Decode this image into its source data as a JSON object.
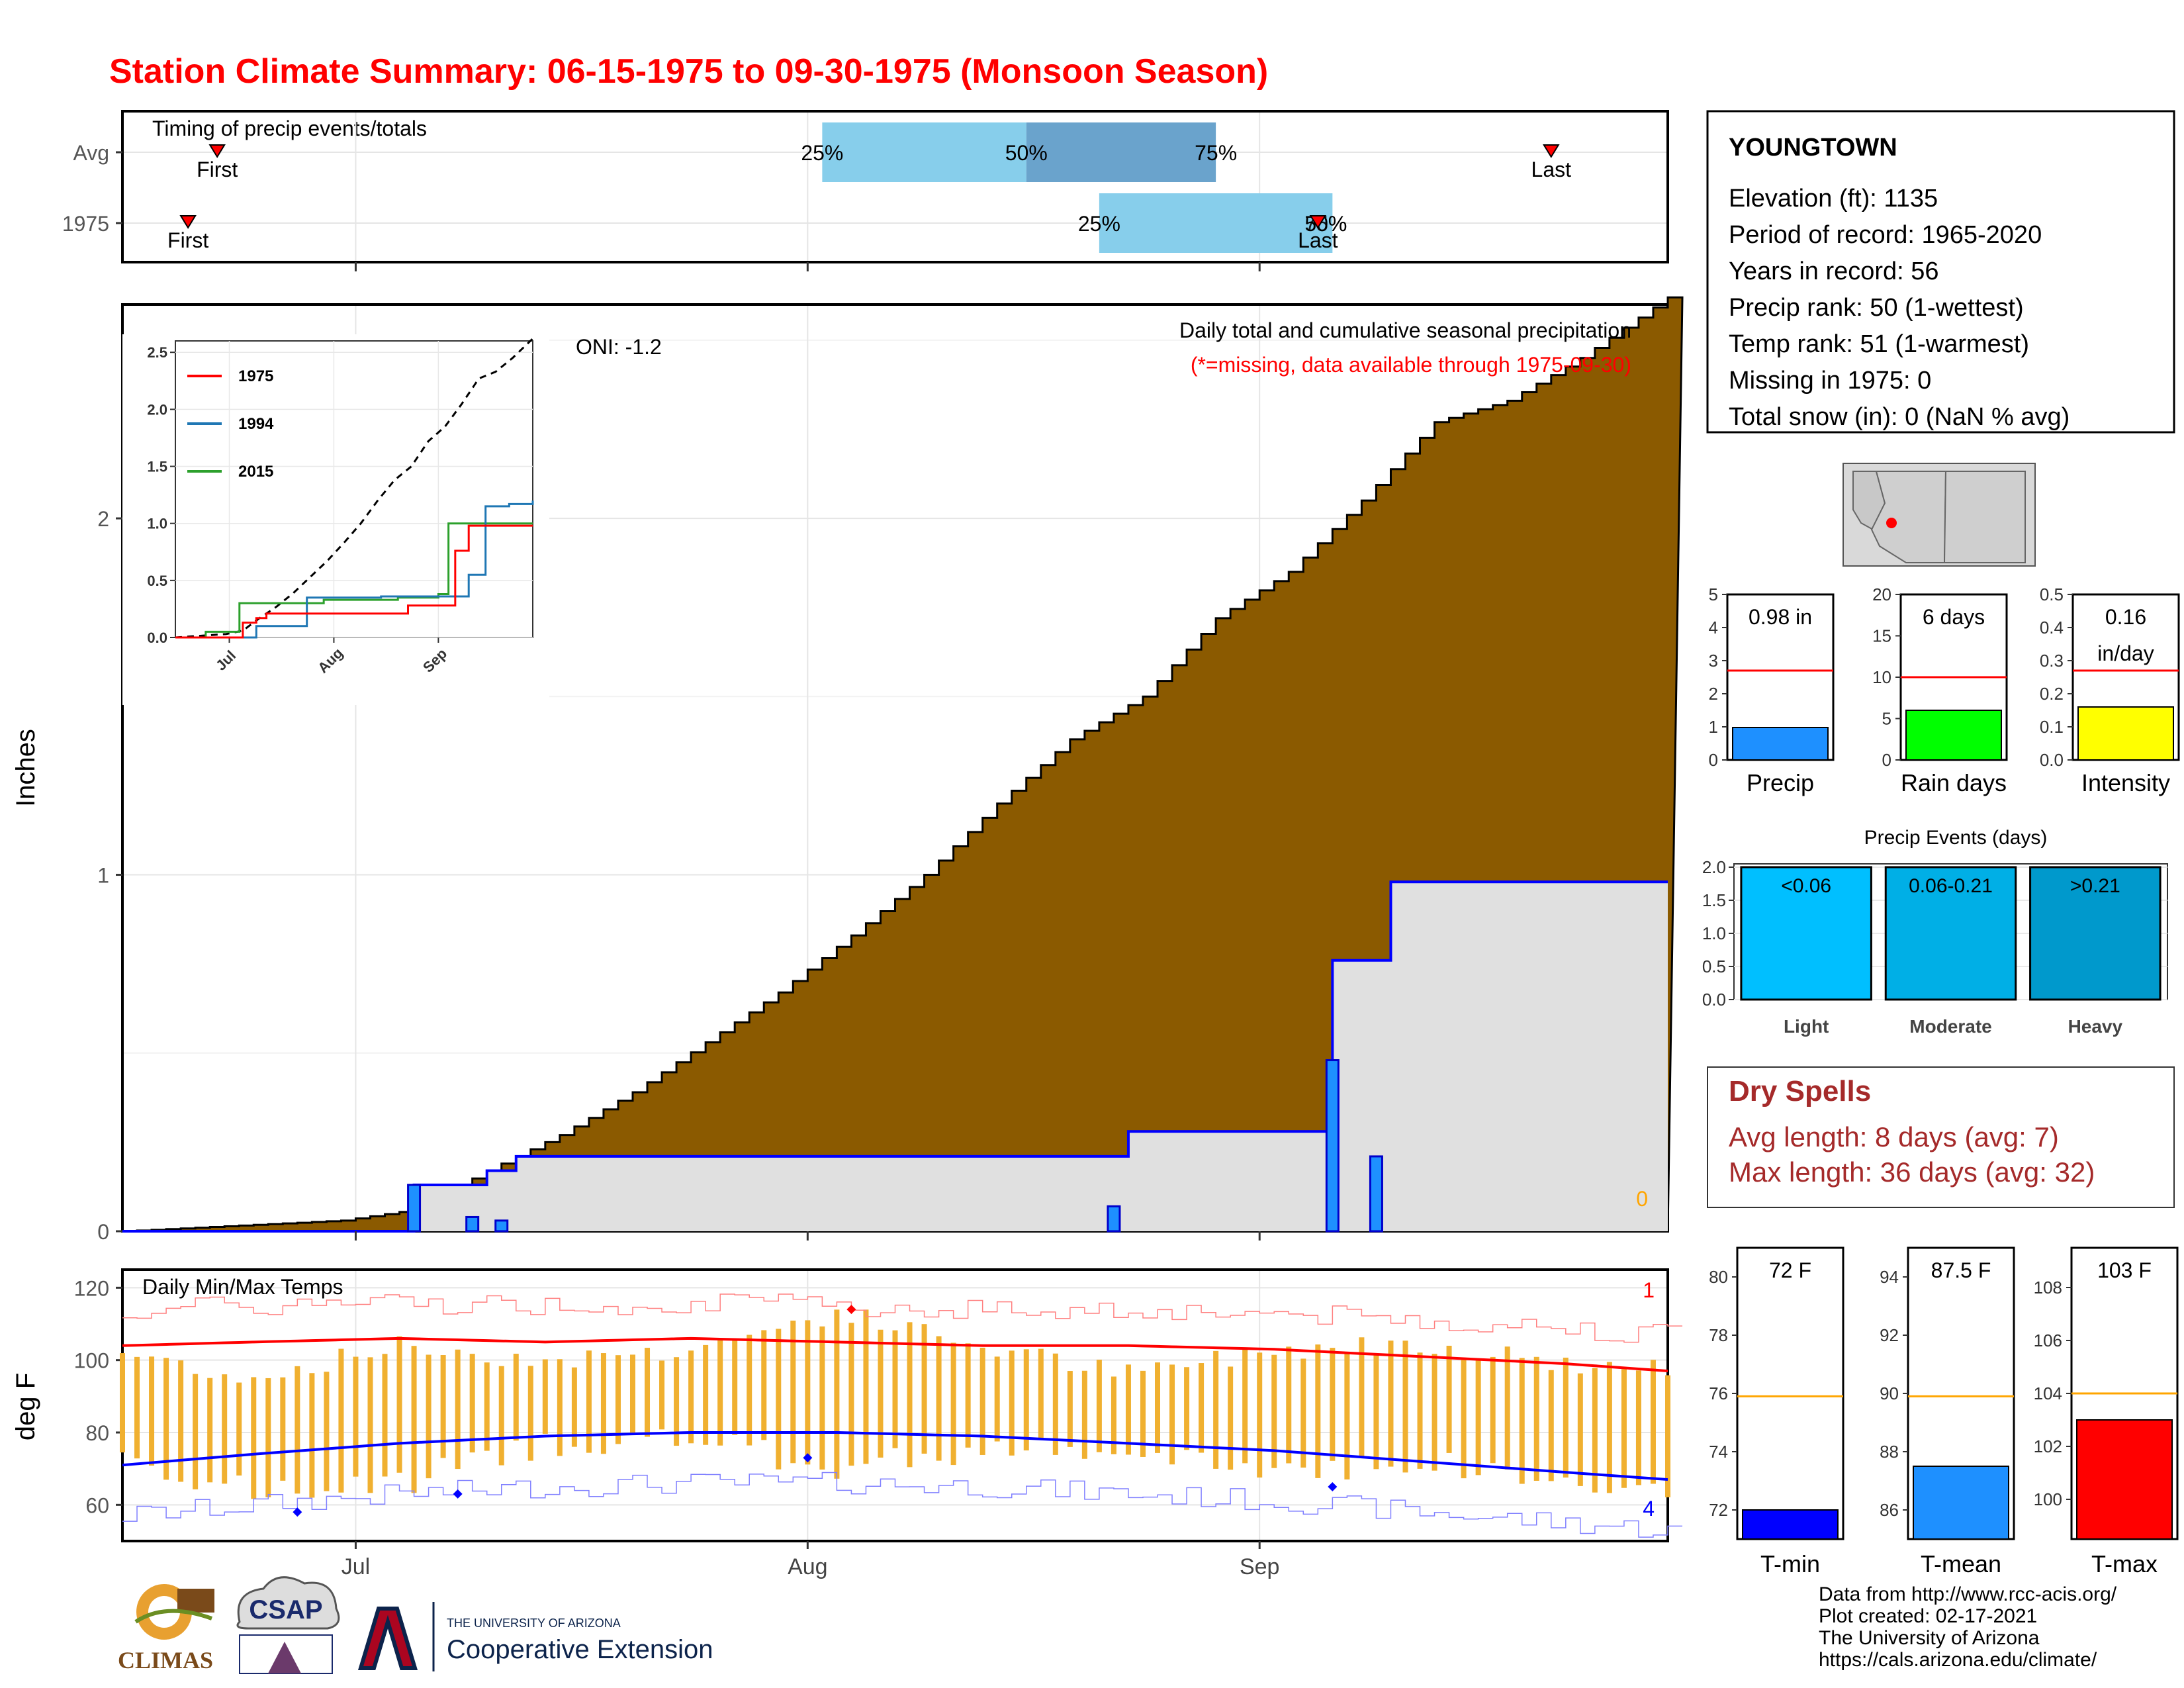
{
  "title": "Station Climate Summary: 06-15-1975 to 09-30-1975 (Monsoon Season)",
  "colors": {
    "title": "#ff0000",
    "cumulative_fill": "#8b5a00",
    "daily_bar": "#1e90ff",
    "obs_line": "#0000ff",
    "obs_fill": "#e0e0e0",
    "temp_bar": "#f0b030",
    "tmax_line": "#ff0000",
    "tmin_line": "#0000ff",
    "timing_light": "#87ceeb",
    "timing_dark": "#6aa3cc",
    "dry_spell": "#a52a2a"
  },
  "month_ticks": [
    "Jul",
    "Aug",
    "Sep"
  ],
  "timing": {
    "title": "Timing of precip events/totals",
    "rows": [
      {
        "label": "Avg",
        "first": "First",
        "last": "Last",
        "p25": "25%",
        "p50": "50%",
        "p75": "75%",
        "first_doy": 7.5,
        "last_doy": 99,
        "q25": 49,
        "q50": 63,
        "q75": 76
      },
      {
        "label": "1975",
        "first": "First",
        "last": "Last",
        "p25": "25%",
        "p50": "50%",
        "p75": "75%",
        "first_doy": 5.5,
        "last_doy": 83,
        "q25": 68,
        "q50": 84,
        "q75": 84
      }
    ]
  },
  "precip_panel": {
    "ylabel": "Inches",
    "yticks": [
      "0",
      "1",
      "2"
    ],
    "oni": "ONI: -1.2",
    "header": "Daily total and cumulative seasonal precipitation",
    "missing_note": "(*=missing, data available through 1975-09-30)",
    "missing_count": "0"
  },
  "inset": {
    "yticks": [
      "0.0",
      "0.5",
      "1.0",
      "1.5",
      "2.0",
      "2.5"
    ],
    "xticks": [
      "Jul",
      "Aug",
      "Sep"
    ],
    "legend": [
      {
        "name": "1975",
        "color": "#ff0000"
      },
      {
        "name": "1994",
        "color": "#1f77b4"
      },
      {
        "name": "2015",
        "color": "#2ca02c"
      }
    ]
  },
  "temp_panel": {
    "title": "Daily Min/Max Temps",
    "ylabel": "deg F",
    "yticks": [
      "60",
      "80",
      "100",
      "120"
    ],
    "count_high": "1",
    "count_low": "4"
  },
  "station": {
    "name": "YOUNGTOWN",
    "lines": [
      "Elevation (ft): 1135",
      "Period of record: 1965-2020",
      "Years in record: 56",
      "Precip rank: 50 (1-wettest)",
      "Temp rank: 51 (1-warmest)",
      "Missing in 1975: 0",
      "Total snow (in): 0 (NaN % avg)"
    ]
  },
  "mini_bars": [
    {
      "label": "Precip",
      "value_text": "0.98 in",
      "value": 0.98,
      "avg": 2.7,
      "max": 5,
      "ticks": [
        "0",
        "1",
        "2",
        "3",
        "4",
        "5"
      ],
      "color": "#1e90ff"
    },
    {
      "label": "Rain days",
      "value_text": "6 days",
      "value": 6,
      "avg": 10,
      "max": 20,
      "ticks": [
        "0",
        "5",
        "10",
        "15",
        "20"
      ],
      "color": "#00ff00"
    },
    {
      "label": "Intensity",
      "value_text": "0.16 in/day",
      "value_line1": "0.16",
      "value_line2": "in/day",
      "value": 0.16,
      "avg": 0.27,
      "max": 0.5,
      "ticks": [
        "0.0",
        "0.1",
        "0.2",
        "0.3",
        "0.4",
        "0.5"
      ],
      "color": "#ffff00"
    }
  ],
  "events": {
    "title": "Precip Events (days)",
    "yticks": [
      "0.0",
      "0.5",
      "1.0",
      "1.5",
      "2.0"
    ],
    "bars": [
      {
        "label": "Light",
        "range": "<0.06",
        "value": 2,
        "color": "#00bfff"
      },
      {
        "label": "Moderate",
        "range": "0.06-0.21",
        "value": 2,
        "color": "#00afe6"
      },
      {
        "label": "Heavy",
        "range": ">0.21",
        "value": 2,
        "color": "#0099cc"
      }
    ]
  },
  "dry_spells": {
    "title": "Dry Spells",
    "avg_line": "Avg length: 8 days (avg: 7)",
    "max_line": "Max length: 36 days (avg: 32)"
  },
  "temp_bars": [
    {
      "label": "T-min",
      "value_text": "72 F",
      "value": 72,
      "avg": 75.9,
      "min": 71,
      "max": 81,
      "ticks": [
        "72",
        "74",
        "76",
        "78",
        "80"
      ],
      "tickvals": [
        72,
        74,
        76,
        78,
        80
      ],
      "color": "#0000ff"
    },
    {
      "label": "T-mean",
      "value_text": "87.5 F",
      "value": 87.5,
      "avg": 89.9,
      "min": 85,
      "max": 95,
      "ticks": [
        "86",
        "88",
        "90",
        "92",
        "94"
      ],
      "tickvals": [
        86,
        88,
        90,
        92,
        94
      ],
      "color": "#1e90ff"
    },
    {
      "label": "T-max",
      "value_text": "103 F",
      "value": 103,
      "avg": 104,
      "min": 98.5,
      "max": 109.5,
      "ticks": [
        "100",
        "102",
        "104",
        "106",
        "108"
      ],
      "tickvals": [
        100,
        102,
        104,
        106,
        108
      ],
      "color": "#ff0000"
    }
  ],
  "footer": [
    "Data from http://www.rcc-acis.org/",
    "Plot created: 02-17-2021",
    "The University of Arizona",
    "https://cals.arizona.edu/climate/"
  ],
  "logos": {
    "climas": "CLIMAS",
    "csap": "CSAP",
    "ua_small": "THE UNIVERSITY OF ARIZONA",
    "ua_big": "Cooperative Extension"
  },
  "chart_data": [
    {
      "type": "area",
      "title": "Daily total and cumulative seasonal precipitation",
      "ylabel": "Inches",
      "x_axis": [
        "Jul",
        "Aug",
        "Sep"
      ],
      "x_start": "06-15",
      "ylim": [
        0,
        2.6
      ],
      "avg_cumulative_days": [
        1,
        6,
        11,
        16,
        21,
        26,
        31,
        36,
        41,
        46,
        51,
        56,
        61,
        66,
        71,
        76,
        81,
        86,
        91,
        96,
        101,
        107
      ],
      "avg_cumulative": [
        0.0,
        0.01,
        0.02,
        0.03,
        0.06,
        0.17,
        0.27,
        0.39,
        0.53,
        0.67,
        0.83,
        1.0,
        1.2,
        1.38,
        1.5,
        1.72,
        1.85,
        2.05,
        2.27,
        2.33,
        2.45,
        2.62
      ],
      "obs_cumulative_days": [
        1,
        21,
        26,
        28,
        70,
        84,
        88,
        107
      ],
      "obs_cumulative": [
        0.0,
        0.13,
        0.17,
        0.21,
        0.28,
        0.76,
        0.98,
        0.98
      ],
      "daily_days": [
        21,
        25,
        27,
        69,
        84,
        87
      ],
      "daily_values": [
        0.13,
        0.04,
        0.03,
        0.07,
        0.48,
        0.21
      ]
    },
    {
      "type": "line",
      "title": "Daily Min/Max Temps",
      "ylabel": "deg F",
      "ylim": [
        50,
        125
      ],
      "days": [
        1,
        10,
        20,
        30,
        40,
        50,
        60,
        70,
        80,
        90,
        100,
        107
      ],
      "avg_max": [
        104,
        105,
        106,
        105,
        106,
        105,
        104,
        104,
        103,
        101,
        99,
        97
      ],
      "avg_min": [
        71,
        74,
        77,
        79,
        80,
        80,
        79,
        77,
        75,
        72,
        69,
        67
      ],
      "obs_max": [
        102,
        95,
        104,
        100,
        103,
        113,
        104,
        96,
        103,
        105,
        99,
        97
      ],
      "obs_min": [
        74,
        63,
        66,
        77,
        78,
        70,
        76,
        73,
        70,
        72,
        66,
        63
      ]
    }
  ]
}
